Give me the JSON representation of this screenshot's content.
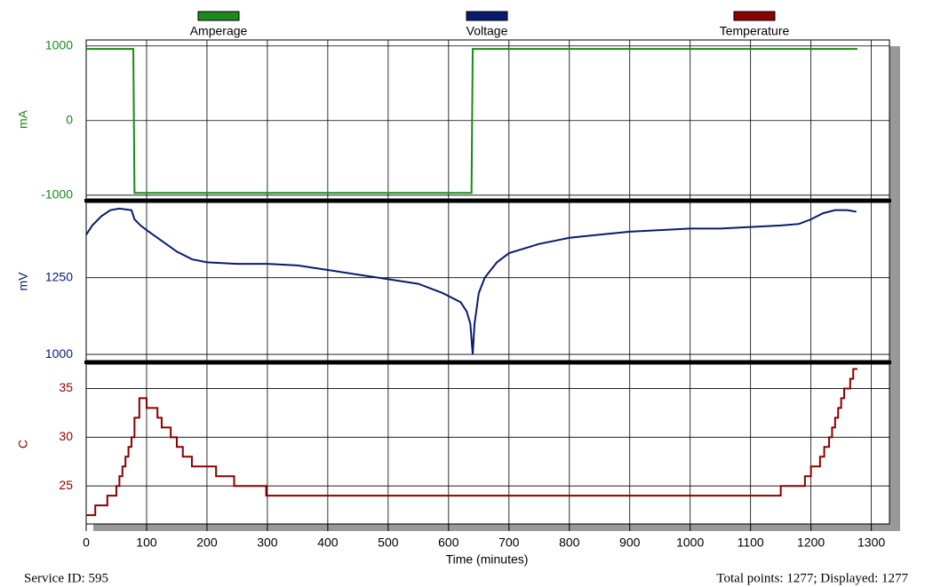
{
  "chart_data": [
    {
      "type": "line",
      "ylabel": "mA",
      "grid": true,
      "xlim": [
        0,
        1330
      ],
      "ylim": [
        -1050,
        1080
      ],
      "yticks": [
        -1000,
        0,
        1000
      ],
      "x": [
        0,
        78,
        80,
        638,
        640,
        1277
      ],
      "series": [
        {
          "name": "Amperage",
          "color": "#1a8a1a",
          "values": [
            960,
            960,
            -970,
            -970,
            960,
            960
          ]
        }
      ]
    },
    {
      "type": "line",
      "ylabel": "mV",
      "grid": true,
      "xlim": [
        0,
        1330
      ],
      "ylim": [
        980,
        1495
      ],
      "yticks": [
        1000,
        1250
      ],
      "x": [
        0,
        10,
        25,
        40,
        55,
        75,
        80,
        90,
        100,
        125,
        150,
        175,
        200,
        250,
        300,
        350,
        400,
        450,
        500,
        550,
        590,
        620,
        630,
        636,
        640,
        643,
        650,
        660,
        680,
        700,
        750,
        800,
        850,
        900,
        950,
        1000,
        1050,
        1100,
        1150,
        1180,
        1200,
        1220,
        1240,
        1260,
        1275
      ],
      "series": [
        {
          "name": "Voltage",
          "color": "#0a1a6e",
          "values": [
            1390,
            1420,
            1450,
            1470,
            1475,
            1470,
            1440,
            1420,
            1405,
            1370,
            1335,
            1310,
            1300,
            1295,
            1295,
            1290,
            1275,
            1260,
            1245,
            1230,
            1200,
            1170,
            1140,
            1100,
            1000,
            1100,
            1200,
            1250,
            1300,
            1330,
            1360,
            1380,
            1390,
            1400,
            1405,
            1410,
            1410,
            1415,
            1420,
            1425,
            1440,
            1460,
            1470,
            1470,
            1465
          ]
        }
      ]
    },
    {
      "type": "line",
      "step": "post",
      "ylabel": "C",
      "xlabel": "Time (minutes)",
      "grid": true,
      "xlim": [
        0,
        1330
      ],
      "ylim": [
        21.1,
        37.5
      ],
      "yticks": [
        25,
        30,
        35
      ],
      "xticks": [
        0,
        100,
        200,
        300,
        400,
        500,
        600,
        700,
        800,
        900,
        1000,
        1100,
        1200,
        1300
      ],
      "x": [
        0,
        15,
        35,
        50,
        55,
        60,
        65,
        70,
        75,
        80,
        88,
        100,
        118,
        125,
        140,
        150,
        160,
        175,
        215,
        245,
        298,
        1150,
        1190,
        1200,
        1215,
        1222,
        1230,
        1235,
        1240,
        1245,
        1250,
        1255,
        1260,
        1265,
        1270,
        1277
      ],
      "series": [
        {
          "name": "Temperature",
          "color": "#8b0000",
          "values": [
            22,
            23,
            24,
            25,
            26,
            27,
            28,
            29,
            30,
            32,
            34,
            33,
            32,
            31,
            30,
            29,
            28,
            27,
            26,
            25,
            24,
            25,
            26,
            27,
            28,
            29,
            30,
            31,
            32,
            33,
            34,
            35,
            35,
            36,
            37,
            37
          ]
        }
      ]
    }
  ],
  "footer": {
    "left": "Service ID: 595",
    "right": "Total points: 1277; Displayed: 1277"
  }
}
